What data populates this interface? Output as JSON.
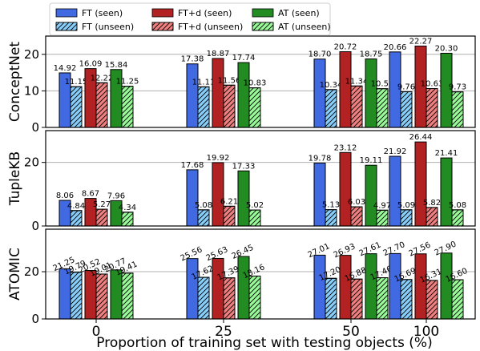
{
  "chart_data": {
    "type": "bar",
    "xlabel": "Proportion of training set with testing objects (%)",
    "categories": [
      "0",
      "25",
      "50",
      "100"
    ],
    "legend": {
      "placement": "top",
      "entries": [
        "FT (seen)",
        "FT (unseen)",
        "FT+d (seen)",
        "FT+d (unseen)",
        "AT (seen)",
        "AT (unseen)"
      ]
    },
    "colors": {
      "FT (seen)": "#4169e1",
      "FT (unseen)": "#87cefa",
      "FT+d (seen)": "#b22222",
      "FT+d (unseen)": "#f08080",
      "AT (seen)": "#228b22",
      "AT (unseen)": "#98fb98"
    },
    "grid": "y",
    "panels": [
      {
        "ylabel": "ConceptNet",
        "ylim": [
          0,
          25
        ],
        "yticks": [
          0,
          10,
          20
        ],
        "label_rotation": 0,
        "series": [
          {
            "name": "FT (seen)",
            "values": [
              14.92,
              17.38,
              18.7,
              20.66
            ],
            "labels": [
              "14.92",
              "17.38",
              "18.70",
              "20.66"
            ]
          },
          {
            "name": "FT (unseen)",
            "values": [
              11.15,
              11.11,
              10.34,
              9.76
            ],
            "labels": [
              "11.15",
              "11.11",
              "10.34",
              "9.76"
            ]
          },
          {
            "name": "FT+d (seen)",
            "values": [
              16.09,
              18.87,
              20.72,
              22.27
            ],
            "labels": [
              "16.09",
              "18.87",
              "20.72",
              "22.27"
            ]
          },
          {
            "name": "FT+d (unseen)",
            "values": [
              12.22,
              11.56,
              11.34,
              10.63
            ],
            "labels": [
              "12.22",
              "11.56",
              "11.34",
              "10.63"
            ]
          },
          {
            "name": "AT (seen)",
            "values": [
              15.84,
              17.74,
              18.75,
              20.3
            ],
            "labels": [
              "15.84",
              "17.74",
              "18.75",
              "20.30"
            ]
          },
          {
            "name": "AT (unseen)",
            "values": [
              11.25,
              10.83,
              10.59,
              9.73
            ],
            "labels": [
              "11.25",
              "10.83",
              "10.59",
              "9.73"
            ]
          }
        ]
      },
      {
        "ylabel": "TupleKB",
        "ylim": [
          0,
          30
        ],
        "yticks": [
          0,
          20
        ],
        "label_rotation": 0,
        "series": [
          {
            "name": "FT (seen)",
            "values": [
              8.06,
              17.68,
              19.78,
              21.92
            ],
            "labels": [
              "8.06",
              "17.68",
              "19.78",
              "21.92"
            ]
          },
          {
            "name": "FT (unseen)",
            "values": [
              4.84,
              5.08,
              5.13,
              5.09
            ],
            "labels": [
              "4.84",
              "5.08",
              "5.13",
              "5.09"
            ]
          },
          {
            "name": "FT+d (seen)",
            "values": [
              8.67,
              19.92,
              23.12,
              26.44
            ],
            "labels": [
              "8.67",
              "19.92",
              "23.12",
              "26.44"
            ]
          },
          {
            "name": "FT+d (unseen)",
            "values": [
              5.27,
              6.21,
              6.03,
              5.82
            ],
            "labels": [
              "5.27",
              "6.21",
              "6.03",
              "5.82"
            ]
          },
          {
            "name": "AT (seen)",
            "values": [
              7.96,
              17.33,
              19.11,
              21.41
            ],
            "labels": [
              "7.96",
              "17.33",
              "19.11",
              "21.41"
            ]
          },
          {
            "name": "AT (unseen)",
            "values": [
              4.34,
              5.02,
              4.97,
              5.08
            ],
            "labels": [
              "4.34",
              "5.02",
              "4.97",
              "5.08"
            ]
          }
        ]
      },
      {
        "ylabel": "ATOMIC",
        "ylim": [
          0,
          38
        ],
        "yticks": [
          0,
          20
        ],
        "label_rotation": 25,
        "series": [
          {
            "name": "FT (seen)",
            "values": [
              21.25,
              25.56,
              27.01,
              27.7
            ],
            "labels": [
              "21.25",
              "25.56",
              "27.01",
              "27.70"
            ]
          },
          {
            "name": "FT (unseen)",
            "values": [
              19.79,
              17.62,
              17.2,
              16.69
            ],
            "labels": [
              "19.79",
              "17.62",
              "17.20",
              "16.69"
            ]
          },
          {
            "name": "FT+d (seen)",
            "values": [
              20.52,
              25.63,
              26.93,
              27.56
            ],
            "labels": [
              "20.52",
              "25.63",
              "26.93",
              "27.56"
            ]
          },
          {
            "name": "FT+d (unseen)",
            "values": [
              19.01,
              17.39,
              16.88,
              16.31
            ],
            "labels": [
              "19.01",
              "17.39",
              "16.88",
              "16.31"
            ]
          },
          {
            "name": "AT (seen)",
            "values": [
              20.77,
              26.45,
              27.61,
              27.9
            ],
            "labels": [
              "20.77",
              "26.45",
              "27.61",
              "27.90"
            ]
          },
          {
            "name": "AT (unseen)",
            "values": [
              19.41,
              18.16,
              17.46,
              16.6
            ],
            "labels": [
              "19.41",
              "18.16",
              "17.46",
              "16.60"
            ]
          }
        ]
      }
    ]
  }
}
